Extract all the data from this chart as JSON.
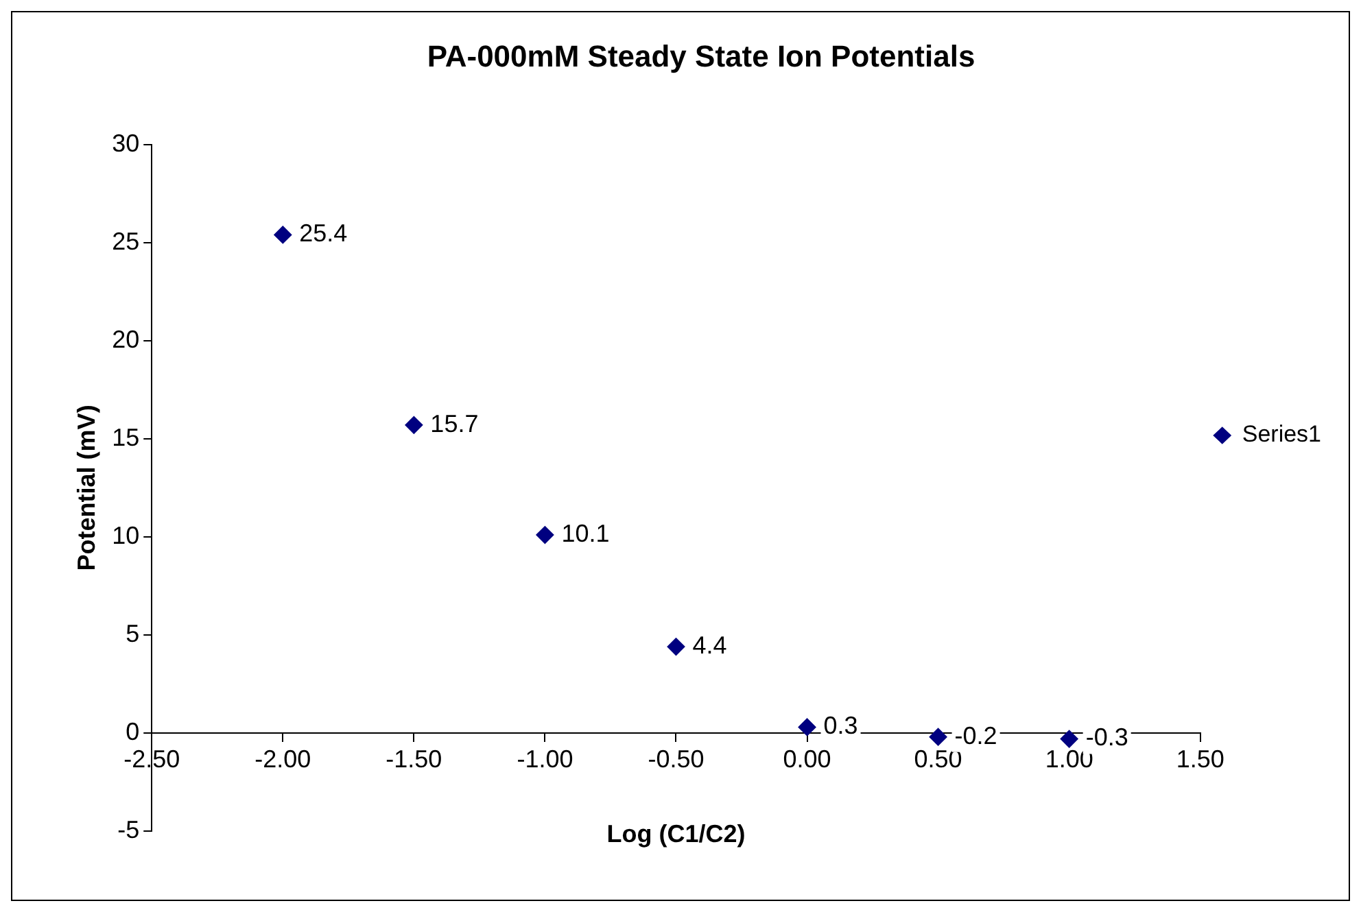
{
  "chart_data": {
    "type": "scatter",
    "title": "PA-000mM Steady State Ion Potentials",
    "xlabel": "Log (C1/C2)",
    "ylabel": "Potential (mV)",
    "x": [
      -2,
      -1.5,
      -1,
      -0.5,
      0,
      0.5,
      1
    ],
    "series": [
      {
        "name": "Series1",
        "color": "#000080",
        "values": [
          25.4,
          15.7,
          10.1,
          4.4,
          0.3,
          -0.2,
          -0.3
        ]
      }
    ],
    "xlim": [
      -2.5,
      1.5
    ],
    "xticks": [
      {
        "value": -2.5,
        "label": "-2.50"
      },
      {
        "value": -2,
        "label": "-2.00"
      },
      {
        "value": -1.5,
        "label": "-1.50"
      },
      {
        "value": -1,
        "label": "-1.00"
      },
      {
        "value": -0.5,
        "label": "-0.50"
      },
      {
        "value": 0,
        "label": "0.00"
      },
      {
        "value": 0.5,
        "label": "0.50"
      },
      {
        "value": 1,
        "label": "1.00"
      },
      {
        "value": 1.5,
        "label": "1.50"
      }
    ],
    "ylim": [
      -5,
      30
    ],
    "yticks": [
      -5,
      0,
      5,
      10,
      15,
      20,
      25,
      30
    ],
    "marker": "diamond",
    "data_labels": true,
    "legend": "right",
    "grid": false
  }
}
